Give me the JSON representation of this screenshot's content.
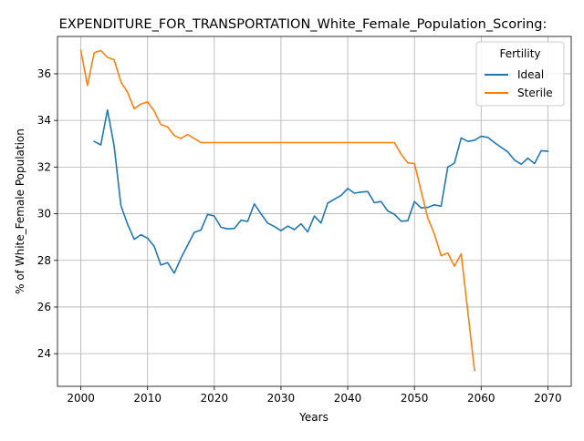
{
  "chart_data": {
    "type": "line",
    "title": "EXPENDITURE_FOR_TRANSPORTATION_White_Female_Population_Scoring:",
    "xlabel": "Years",
    "ylabel": "% of White_Female Population",
    "xlim": [
      1996.5,
      2073.5
    ],
    "ylim": [
      22.6,
      37.6
    ],
    "xticks": [
      2000,
      2010,
      2020,
      2030,
      2040,
      2050,
      2060,
      2070
    ],
    "yticks": [
      24,
      26,
      28,
      30,
      32,
      34,
      36
    ],
    "grid": true,
    "legend": {
      "title": "Fertility",
      "placement": "top-right"
    },
    "series": [
      {
        "name": "Ideal",
        "color": "#1f77b4",
        "x": [
          2002,
          2003,
          2004,
          2005,
          2006,
          2007,
          2008,
          2009,
          2010,
          2011,
          2012,
          2013,
          2014,
          2015,
          2016,
          2017,
          2018,
          2019,
          2020,
          2021,
          2022,
          2023,
          2024,
          2025,
          2026,
          2027,
          2028,
          2029,
          2030,
          2031,
          2032,
          2033,
          2034,
          2035,
          2036,
          2037,
          2038,
          2039,
          2040,
          2041,
          2042,
          2043,
          2044,
          2045,
          2046,
          2047,
          2048,
          2049,
          2050,
          2051,
          2052,
          2053,
          2054,
          2055,
          2056,
          2057,
          2058,
          2059,
          2060,
          2061,
          2062,
          2063,
          2064,
          2065,
          2066,
          2067,
          2068,
          2069,
          2070
        ],
        "y": [
          33.1,
          32.95,
          34.45,
          32.9,
          30.35,
          29.55,
          28.9,
          29.1,
          28.95,
          28.6,
          27.8,
          27.9,
          27.45,
          28.1,
          28.65,
          29.2,
          29.3,
          29.97,
          29.9,
          29.42,
          29.35,
          29.37,
          29.72,
          29.67,
          30.42,
          30.0,
          29.6,
          29.45,
          29.27,
          29.47,
          29.32,
          29.57,
          29.22,
          29.9,
          29.6,
          30.45,
          30.62,
          30.78,
          31.08,
          30.88,
          30.93,
          30.95,
          30.47,
          30.52,
          30.12,
          29.98,
          29.68,
          29.7,
          30.52,
          30.25,
          30.27,
          30.38,
          30.32,
          32.0,
          32.17,
          33.25,
          33.1,
          33.15,
          33.32,
          33.27,
          33.05,
          32.85,
          32.65,
          32.3,
          32.12,
          32.38,
          32.15,
          32.7,
          32.68
        ]
      },
      {
        "name": "Sterile",
        "color": "#ff7f0e",
        "x": [
          2000,
          2001,
          2002,
          2003,
          2004,
          2005,
          2006,
          2007,
          2008,
          2009,
          2010,
          2011,
          2012,
          2013,
          2014,
          2015,
          2016,
          2017,
          2018,
          2019,
          2020,
          2021,
          2022,
          2023,
          2024,
          2025,
          2026,
          2027,
          2028,
          2029,
          2030,
          2031,
          2032,
          2033,
          2034,
          2035,
          2036,
          2037,
          2038,
          2039,
          2040,
          2041,
          2042,
          2043,
          2044,
          2045,
          2046,
          2047,
          2048,
          2049,
          2050,
          2051,
          2052,
          2053,
          2054,
          2055,
          2056,
          2057,
          2058,
          2059
        ],
        "y": [
          37.0,
          35.5,
          36.9,
          37.0,
          36.7,
          36.6,
          35.65,
          35.2,
          34.5,
          34.7,
          34.8,
          34.4,
          33.82,
          33.72,
          33.35,
          33.22,
          33.4,
          33.22,
          33.05,
          33.05,
          33.05,
          33.05,
          33.05,
          33.05,
          33.05,
          33.05,
          33.05,
          33.05,
          33.05,
          33.05,
          33.05,
          33.05,
          33.05,
          33.05,
          33.05,
          33.05,
          33.05,
          33.05,
          33.05,
          33.05,
          33.05,
          33.05,
          33.05,
          33.05,
          33.05,
          33.05,
          33.05,
          33.05,
          32.55,
          32.18,
          32.15,
          30.98,
          29.82,
          29.12,
          28.2,
          28.32,
          27.75,
          28.28,
          25.8,
          23.28
        ]
      }
    ]
  }
}
